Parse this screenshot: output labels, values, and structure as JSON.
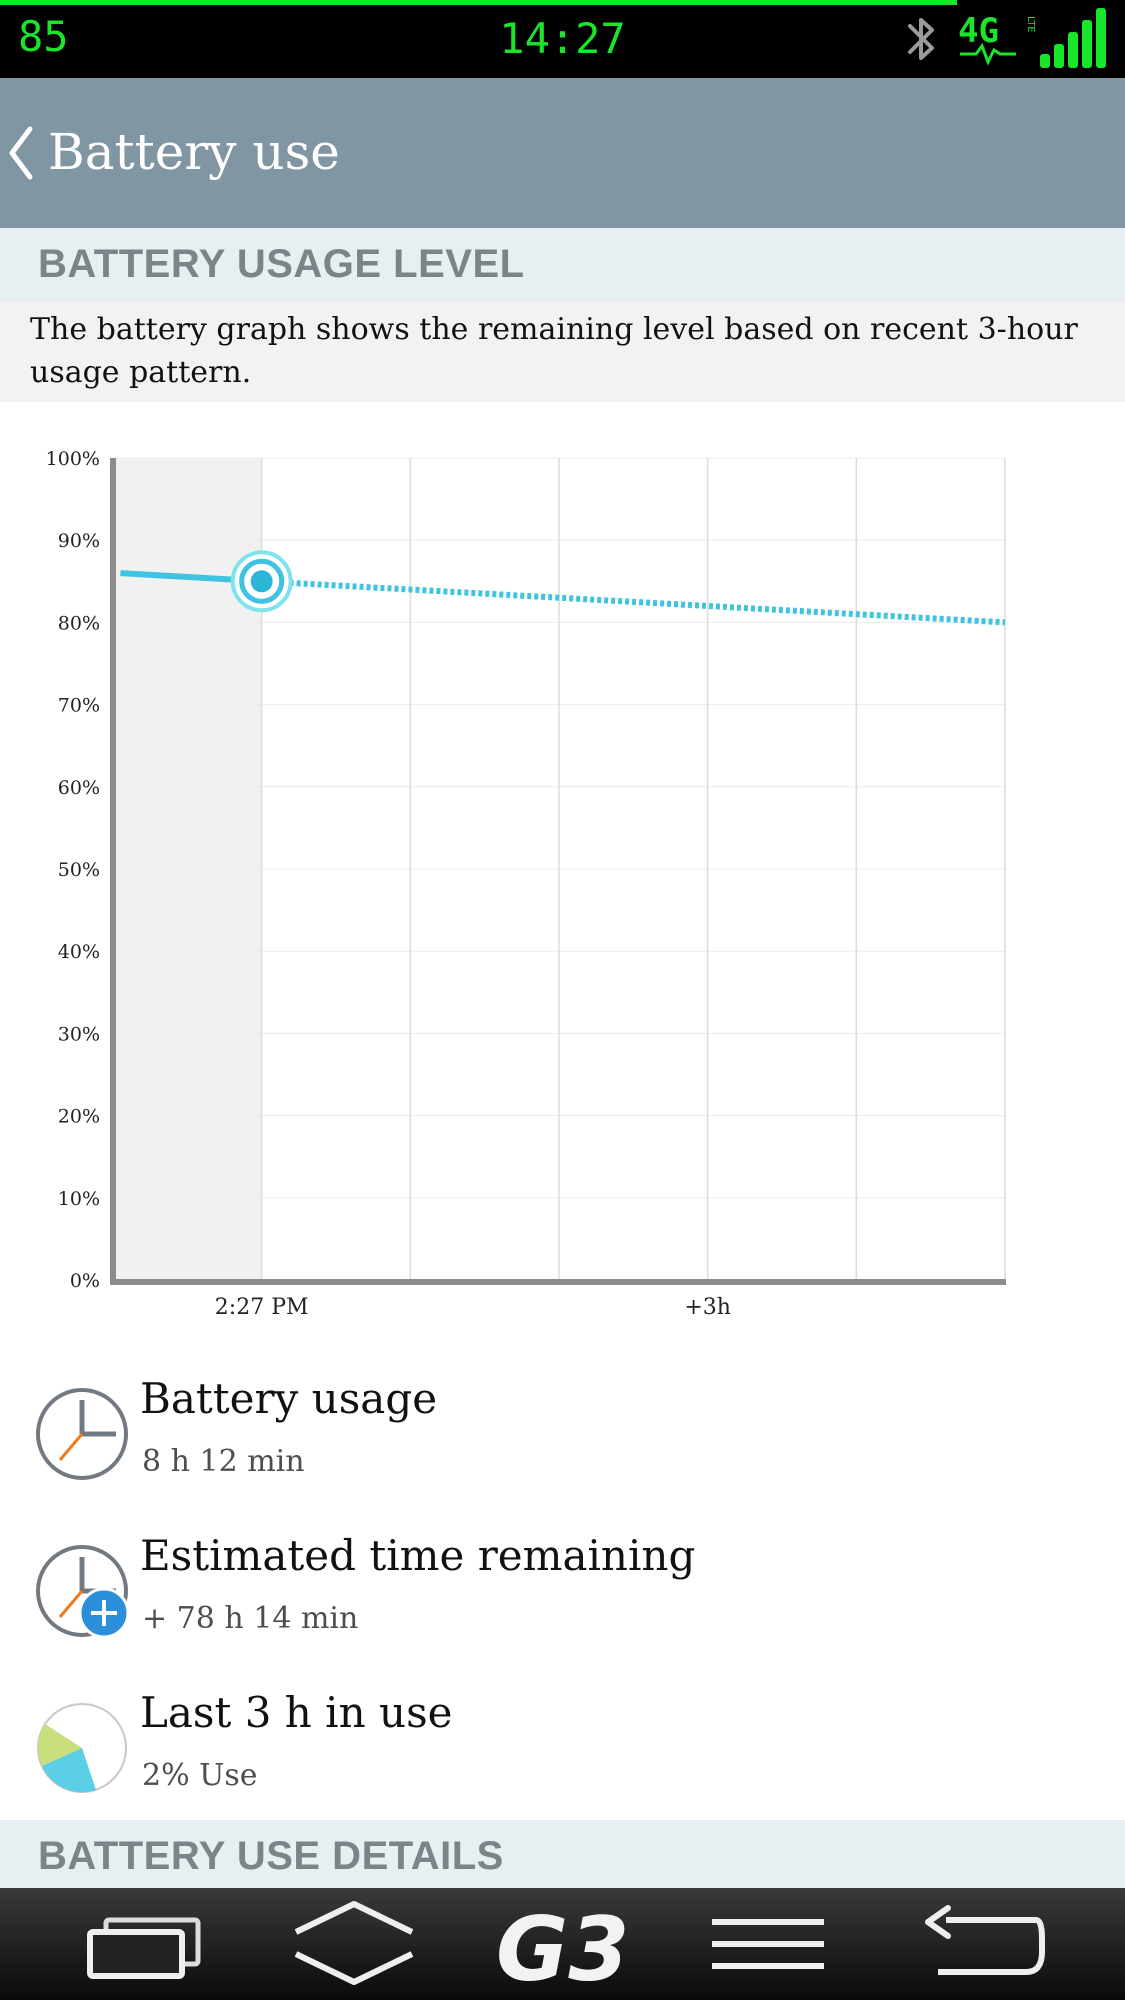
{
  "status_bar": {
    "battery": "85",
    "time": "14:27",
    "network": "4G",
    "network_sub": "LTE",
    "colors": {
      "accent": "#19e62b",
      "background": "#000000"
    },
    "icons": [
      "bluetooth-icon",
      "network-4g-lte-icon",
      "signal-strength-icon"
    ]
  },
  "app_bar": {
    "title": "Battery use",
    "back_icon": "chevron-left-icon",
    "color": "#8196a3"
  },
  "usage_level": {
    "header": "BATTERY USAGE LEVEL",
    "description": "The battery graph shows the remaining level based on recent 3-hour usage pattern."
  },
  "chart_data": {
    "type": "line",
    "y_ticks": [
      "100%",
      "90%",
      "80%",
      "70%",
      "60%",
      "50%",
      "40%",
      "30%",
      "20%",
      "10%",
      "0%"
    ],
    "x_ticks": [
      "2:27 PM",
      "+3h"
    ],
    "ylim": [
      0,
      100
    ],
    "xlim_hours": [
      -1,
      5
    ],
    "series": [
      {
        "style": "solid",
        "color": "#3fc3e0",
        "x": [
          -0.95,
          0
        ],
        "y": [
          86,
          85
        ]
      },
      {
        "style": "dotted",
        "color": "#3fc3e0",
        "x": [
          0,
          5
        ],
        "y": [
          85,
          80
        ]
      }
    ],
    "current_point": {
      "x": 0,
      "y": 85
    },
    "shaded_past_region_hours": [
      -1,
      0
    ],
    "grid": true
  },
  "info_rows": [
    {
      "title": "Battery usage",
      "value": "8 h 12 min",
      "icon": "clock-icon"
    },
    {
      "title": "Estimated time remaining",
      "value": "+ 78 h 14 min",
      "icon": "clock-plus-icon"
    },
    {
      "title": "Last 3 h in use",
      "value": "2% Use",
      "icon": "pie-chart-icon"
    }
  ],
  "details": {
    "header": "BATTERY USE DETAILS"
  },
  "nav_bar": {
    "items": [
      "recent-apps-button",
      "home-button",
      "g3-logo-button",
      "menu-button",
      "back-button"
    ],
    "logo_text": "G3"
  }
}
